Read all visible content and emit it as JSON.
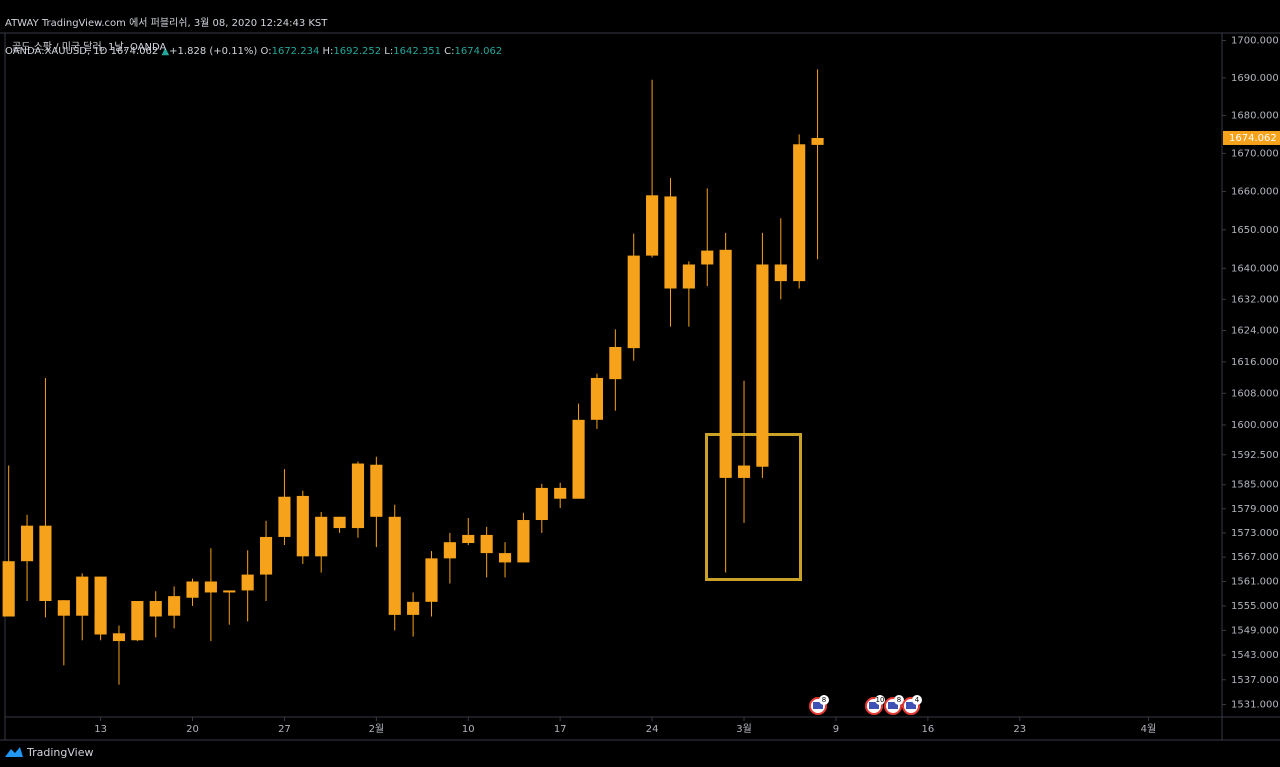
{
  "header": {
    "title": "ATWAY TradingView.com 에서 퍼블리쉬, 3월 08, 2020 12:24:43 KST",
    "symbol": "OANDA:XAUUSD, 1D",
    "arrow": "▲",
    "change": "+1.828",
    "change_pct": "(+0.11%)",
    "ohlc_labels": [
      "O:",
      "H:",
      "L:",
      "C:"
    ]
  },
  "chart_data": {
    "type": "candlestick",
    "title": "골드 스팟 / 미국 달러, 1날, OANDA",
    "color": "#f7a21b",
    "log_scale": true,
    "xlim": [
      -0.2,
      66
    ],
    "xticks": [
      {
        "value": 5,
        "label": "13"
      },
      {
        "value": 10,
        "label": "20"
      },
      {
        "value": 15,
        "label": "27"
      },
      {
        "value": 20,
        "label": "2월"
      },
      {
        "value": 25,
        "label": "10"
      },
      {
        "value": 30,
        "label": "17"
      },
      {
        "value": 35,
        "label": "24"
      },
      {
        "value": 40,
        "label": "3월"
      },
      {
        "value": 45,
        "label": "9"
      },
      {
        "value": 50,
        "label": "16"
      },
      {
        "value": 55,
        "label": "23"
      },
      {
        "value": 62,
        "label": "4월"
      }
    ],
    "ylim": [
      1528,
      1702
    ],
    "yticks": [
      {
        "value": 1700,
        "label": "1700.000"
      },
      {
        "value": 1690,
        "label": "1690.000"
      },
      {
        "value": 1680,
        "label": "1680.000"
      },
      {
        "value": 1670,
        "label": "1670.000"
      },
      {
        "value": 1660,
        "label": "1660.000"
      },
      {
        "value": 1650,
        "label": "1650.000"
      },
      {
        "value": 1640,
        "label": "1640.000"
      },
      {
        "value": 1632,
        "label": "1632.000"
      },
      {
        "value": 1624,
        "label": "1624.000"
      },
      {
        "value": 1616,
        "label": "1616.000"
      },
      {
        "value": 1608,
        "label": "1608.000"
      },
      {
        "value": 1600,
        "label": "1600.000"
      },
      {
        "value": 1592.5,
        "label": "1592.500"
      },
      {
        "value": 1585,
        "label": "1585.000"
      },
      {
        "value": 1579,
        "label": "1579.000"
      },
      {
        "value": 1573,
        "label": "1573.000"
      },
      {
        "value": 1567,
        "label": "1567.000"
      },
      {
        "value": 1561,
        "label": "1561.000"
      },
      {
        "value": 1555,
        "label": "1555.000"
      },
      {
        "value": 1549,
        "label": "1549.000"
      },
      {
        "value": 1543,
        "label": "1543.000"
      },
      {
        "value": 1537,
        "label": "1537.000"
      },
      {
        "value": 1531,
        "label": "1531.000"
      }
    ],
    "open": [
      1552.4,
      1566.0,
      1574.8,
      1556.4,
      1552.6,
      1562.2,
      1548.3,
      1546.6,
      1552.4,
      1552.6,
      1557.0,
      1561.0,
      1558.3,
      1558.8,
      1562.7,
      1572.0,
      1582.2,
      1567.2,
      1577.0,
      1574.2,
      1590.0,
      1577.0,
      1552.8,
      1556.0,
      1566.7,
      1570.5,
      1572.5,
      1568.0,
      1565.7,
      1576.2,
      1584.2,
      1581.5,
      1601.3,
      1611.6,
      1619.5,
      1643.3,
      1658.7,
      1634.8,
      1641.0,
      1644.8,
      1586.7,
      1589.5,
      1641.0,
      1636.7,
      1672.234
    ],
    "high": [
      1589.8,
      1577.5,
      1611.9,
      1556.4,
      1563.0,
      1562.2,
      1550.2,
      1556.2,
      1558.6,
      1559.8,
      1561.7,
      1569.2,
      1558.8,
      1568.7,
      1576.0,
      1588.9,
      1583.5,
      1578.2,
      1577.0,
      1590.8,
      1592.0,
      1580.0,
      1558.3,
      1568.5,
      1573.0,
      1576.7,
      1574.5,
      1570.7,
      1578.0,
      1585.2,
      1585.5,
      1605.4,
      1613.0,
      1624.3,
      1649.0,
      1689.5,
      1663.5,
      1641.8,
      1660.8,
      1649.2,
      1611.2,
      1649.2,
      1653.0,
      1675.0,
      1692.252
    ],
    "low": [
      1552.4,
      1556.2,
      1552.2,
      1540.5,
      1546.6,
      1546.6,
      1535.8,
      1546.4,
      1547.3,
      1549.5,
      1555.0,
      1546.4,
      1550.4,
      1551.2,
      1556.2,
      1570.0,
      1565.3,
      1563.2,
      1573.0,
      1571.8,
      1569.5,
      1549.0,
      1547.5,
      1552.4,
      1560.5,
      1570.0,
      1562.0,
      1562.0,
      1565.7,
      1573.0,
      1579.2,
      1581.5,
      1599.0,
      1603.6,
      1616.3,
      1642.8,
      1625.0,
      1625.0,
      1635.4,
      1563.2,
      1575.5,
      1586.7,
      1632.0,
      1634.8,
      1642.351
    ],
    "close": [
      1566.0,
      1574.8,
      1556.2,
      1552.6,
      1562.2,
      1548.0,
      1546.4,
      1556.2,
      1556.2,
      1557.4,
      1561.0,
      1558.3,
      1558.8,
      1562.7,
      1572.0,
      1582.0,
      1567.2,
      1577.0,
      1574.2,
      1590.3,
      1577.0,
      1552.8,
      1556.0,
      1566.7,
      1570.7,
      1572.5,
      1568.0,
      1565.7,
      1576.2,
      1584.2,
      1581.5,
      1601.3,
      1611.9,
      1619.8,
      1643.3,
      1659.0,
      1634.8,
      1641.0,
      1644.6,
      1586.7,
      1589.8,
      1641.0,
      1636.7,
      1672.4,
      1674.062
    ],
    "events": [
      "8",
      "10",
      "8",
      "4"
    ]
  },
  "footer": {
    "brand": "TradingView"
  }
}
